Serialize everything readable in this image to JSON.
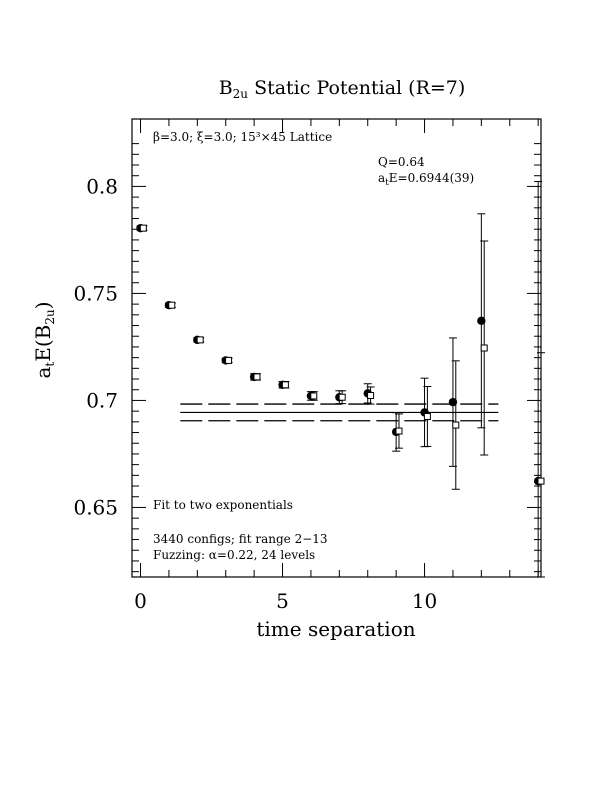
{
  "chart_data": {
    "type": "scatter",
    "title_main": "B",
    "title_sub": "2u",
    "title_rest": " Static Potential (R=7)",
    "xlabel": "time separation",
    "ylabel_main": "a",
    "ylabel_sub1": "t",
    "ylabel_mid": "E(B",
    "ylabel_sub2": "2u",
    "ylabel_end": ")",
    "xlim": [
      -0.3,
      14.1
    ],
    "ylim": [
      0.6175,
      0.8315
    ],
    "x_ticks": [
      {
        "value": 0,
        "label": "0"
      },
      {
        "value": 5,
        "label": "5"
      },
      {
        "value": 10,
        "label": "10"
      }
    ],
    "y_ticks": [
      {
        "value": 0.65,
        "label": "0.65"
      },
      {
        "value": 0.7,
        "label": "0.7"
      },
      {
        "value": 0.75,
        "label": "0.75"
      },
      {
        "value": 0.8,
        "label": "0.8"
      }
    ],
    "annotations": {
      "lattice": "β=3.0; ξ=3.0; 15³×45 Lattice",
      "q": "Q=0.64",
      "energy_main": "a",
      "energy_sub": "t",
      "energy_rest": "E=0.6944(39)",
      "fit_label": "Fit to two exponentials",
      "configs": "3440 configs; fit range 2−13",
      "fuzzing": "Fuzzing: α=0.22, 24 levels"
    },
    "fit": {
      "t_min": 1.4,
      "t_max": 12.6,
      "value": 0.6944,
      "error": 0.0039
    },
    "series": [
      {
        "marker": "filled-circle",
        "points": [
          {
            "x": 0,
            "y": 0.7805,
            "err": 0.001
          },
          {
            "x": 1,
            "y": 0.7445,
            "err": 0.001
          },
          {
            "x": 2,
            "y": 0.7283,
            "err": 0.001
          },
          {
            "x": 3,
            "y": 0.7187,
            "err": 0.001
          },
          {
            "x": 4,
            "y": 0.711,
            "err": 0.0015
          },
          {
            "x": 5,
            "y": 0.7073,
            "err": 0.0015
          },
          {
            "x": 6,
            "y": 0.7021,
            "err": 0.002
          },
          {
            "x": 7,
            "y": 0.7015,
            "err": 0.003
          },
          {
            "x": 8,
            "y": 0.7033,
            "err": 0.0045
          },
          {
            "x": 9,
            "y": 0.6853,
            "err": 0.009
          },
          {
            "x": 10,
            "y": 0.6944,
            "err": 0.016
          },
          {
            "x": 11,
            "y": 0.6992,
            "err": 0.03
          },
          {
            "x": 12,
            "y": 0.7372,
            "err": 0.05
          },
          {
            "x": 14,
            "y": 0.6623,
            "err": 0.14
          }
        ]
      },
      {
        "marker": "open-square",
        "points": [
          {
            "x": 0.1,
            "y": 0.7805,
            "err": 0.001
          },
          {
            "x": 1.1,
            "y": 0.7445,
            "err": 0.001
          },
          {
            "x": 2.1,
            "y": 0.7283,
            "err": 0.001
          },
          {
            "x": 3.1,
            "y": 0.7187,
            "err": 0.001
          },
          {
            "x": 4.1,
            "y": 0.711,
            "err": 0.0015
          },
          {
            "x": 5.1,
            "y": 0.7073,
            "err": 0.0015
          },
          {
            "x": 6.1,
            "y": 0.7021,
            "err": 0.002
          },
          {
            "x": 7.1,
            "y": 0.7015,
            "err": 0.003
          },
          {
            "x": 8.1,
            "y": 0.7023,
            "err": 0.004
          },
          {
            "x": 9.1,
            "y": 0.6857,
            "err": 0.008
          },
          {
            "x": 10.1,
            "y": 0.6925,
            "err": 0.014
          },
          {
            "x": 11.1,
            "y": 0.6885,
            "err": 0.03
          },
          {
            "x": 12.1,
            "y": 0.7245,
            "err": 0.05
          },
          {
            "x": 14.1,
            "y": 0.6623,
            "err": 0.06
          }
        ]
      }
    ]
  }
}
